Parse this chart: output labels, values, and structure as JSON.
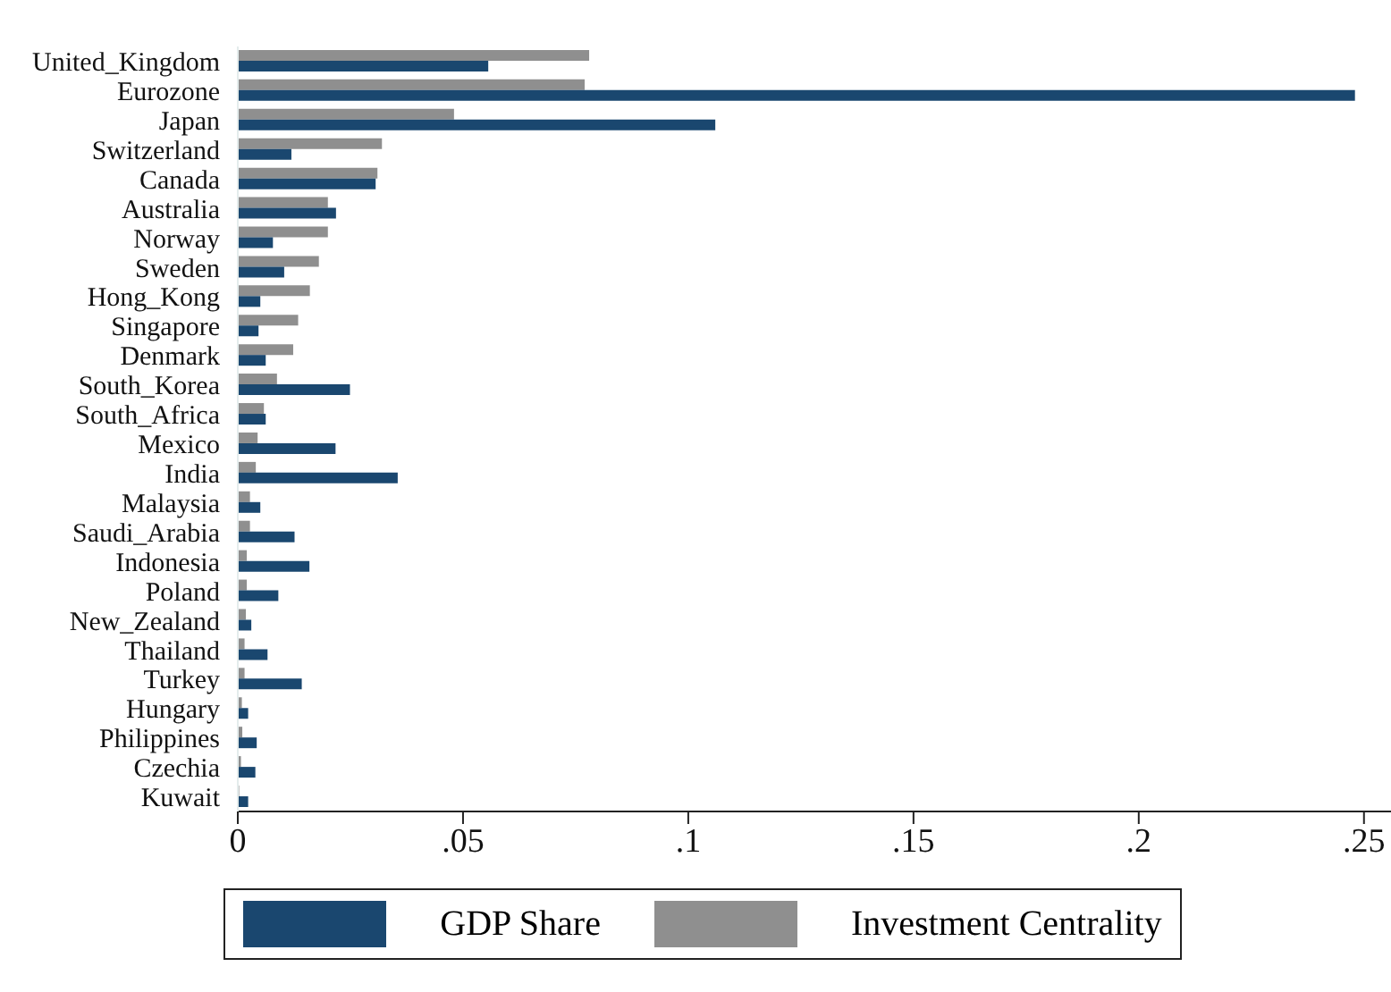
{
  "chart_data": {
    "type": "bar",
    "orientation": "horizontal",
    "categories": [
      "United_Kingdom",
      "Eurozone",
      "Japan",
      "Switzerland",
      "Canada",
      "Australia",
      "Norway",
      "Sweden",
      "Hong_Kong",
      "Singapore",
      "Denmark",
      "South_Korea",
      "South_Africa",
      "Mexico",
      "India",
      "Malaysia",
      "Saudi_Arabia",
      "Indonesia",
      "Poland",
      "New_Zealand",
      "Thailand",
      "Turkey",
      "Hungary",
      "Philippines",
      "Czechia",
      "Kuwait"
    ],
    "series": [
      {
        "name": "Investment Centrality",
        "color": "#8f8f8f",
        "values": [
          0.078,
          0.077,
          0.048,
          0.032,
          0.031,
          0.02,
          0.02,
          0.018,
          0.016,
          0.0134,
          0.0123,
          0.0087,
          0.0058,
          0.0044,
          0.004,
          0.0027,
          0.0027,
          0.002,
          0.002,
          0.0018,
          0.0015,
          0.0015,
          0.0009,
          0.001,
          0.0007,
          0.0003
        ]
      },
      {
        "name": "GDP Share",
        "color": "#1a476f",
        "values": [
          0.0556,
          0.248,
          0.106,
          0.0119,
          0.0306,
          0.0218,
          0.0078,
          0.0103,
          0.005,
          0.0046,
          0.0062,
          0.0249,
          0.0062,
          0.0217,
          0.0355,
          0.005,
          0.0126,
          0.0159,
          0.009,
          0.003,
          0.0066,
          0.0142,
          0.0023,
          0.0042,
          0.0039,
          0.0023
        ]
      }
    ],
    "xlim": [
      0,
      0.256
    ],
    "xticks": [
      {
        "value": 0,
        "label": "0"
      },
      {
        "value": 0.05,
        "label": ".05"
      },
      {
        "value": 0.1,
        "label": ".1"
      },
      {
        "value": 0.15,
        "label": ".15"
      },
      {
        "value": 0.2,
        "label": ".2"
      },
      {
        "value": 0.25,
        "label": ".25"
      }
    ],
    "grid": false,
    "legend": "bottom"
  }
}
